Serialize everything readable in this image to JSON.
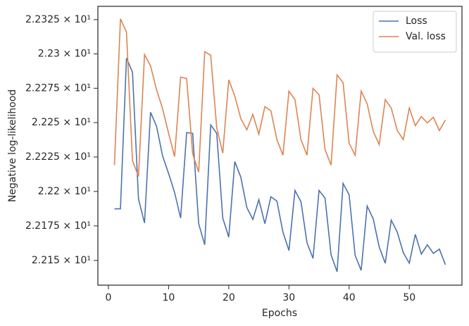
{
  "chart_data": {
    "type": "line",
    "x_label": "Epochs",
    "y_label": "Negative log-likelihood",
    "x": [
      1,
      2,
      3,
      4,
      5,
      6,
      7,
      8,
      9,
      10,
      11,
      12,
      13,
      14,
      15,
      16,
      17,
      18,
      19,
      20,
      21,
      22,
      23,
      24,
      25,
      26,
      27,
      28,
      29,
      30,
      31,
      32,
      33,
      34,
      35,
      36,
      37,
      38,
      39,
      40,
      41,
      42,
      43,
      44,
      45,
      46,
      47,
      48,
      49,
      50,
      51,
      52,
      53,
      54,
      55,
      56
    ],
    "series": [
      {
        "name": "Loss",
        "color": "#4c72b0",
        "values": [
          22.1874,
          22.1874,
          22.2969,
          22.2867,
          22.1945,
          22.1771,
          22.2575,
          22.2473,
          22.2258,
          22.213,
          22.1992,
          22.1807,
          22.2427,
          22.2422,
          22.1766,
          22.1613,
          22.2483,
          22.2422,
          22.1807,
          22.1669,
          22.2217,
          22.2104,
          22.1884,
          22.1797,
          22.194,
          22.1766,
          22.1961,
          22.193,
          22.1705,
          22.1572,
          22.2007,
          22.1925,
          22.1628,
          22.1515,
          22.2007,
          22.1951,
          22.1541,
          22.1418,
          22.2058,
          22.1976,
          22.1536,
          22.1428,
          22.1894,
          22.1802,
          22.1597,
          22.148,
          22.1792,
          22.1705,
          22.1556,
          22.148,
          22.1689,
          22.1546,
          22.1613,
          22.1551,
          22.1582,
          22.1469
        ]
      },
      {
        "name": "Val. loss",
        "color": "#dd8452",
        "values": [
          22.2191,
          22.3256,
          22.3159,
          22.2222,
          22.2109,
          22.2995,
          22.2913,
          22.2739,
          22.2601,
          22.2422,
          22.2253,
          22.2831,
          22.2821,
          22.2273,
          22.214,
          22.3016,
          22.299,
          22.2463,
          22.2278,
          22.2811,
          22.2693,
          22.2529,
          22.2447,
          22.256,
          22.2416,
          22.2616,
          22.2585,
          22.2376,
          22.2263,
          22.2729,
          22.2667,
          22.2376,
          22.2263,
          22.2749,
          22.2703,
          22.2304,
          22.2191,
          22.2847,
          22.279,
          22.235,
          22.2263,
          22.2729,
          22.2637,
          22.2437,
          22.234,
          22.2667,
          22.2606,
          22.2442,
          22.2376,
          22.2606,
          22.2478,
          22.2544,
          22.2498,
          22.2539,
          22.2442,
          22.2519
        ]
      }
    ],
    "xlim": [
      -1.75,
      58.75
    ],
    "xticks": [
      0,
      10,
      20,
      30,
      40,
      50
    ],
    "ylim": [
      22.1321,
      22.3347
    ],
    "log_y": true,
    "yticks": [
      {
        "value": 22.15,
        "label": "2.215 × 10¹"
      },
      {
        "value": 22.175,
        "label": "2.2175 × 10¹"
      },
      {
        "value": 22.2,
        "label": "2.22 × 10¹"
      },
      {
        "value": 22.225,
        "label": "2.2225 × 10¹"
      },
      {
        "value": 22.25,
        "label": "2.225 × 10¹"
      },
      {
        "value": 22.275,
        "label": "2.2275 × 10¹"
      },
      {
        "value": 22.3,
        "label": "2.23 × 10¹"
      },
      {
        "value": 22.325,
        "label": "2.2325 × 10¹"
      }
    ],
    "grid": false,
    "legend": "upper right"
  }
}
